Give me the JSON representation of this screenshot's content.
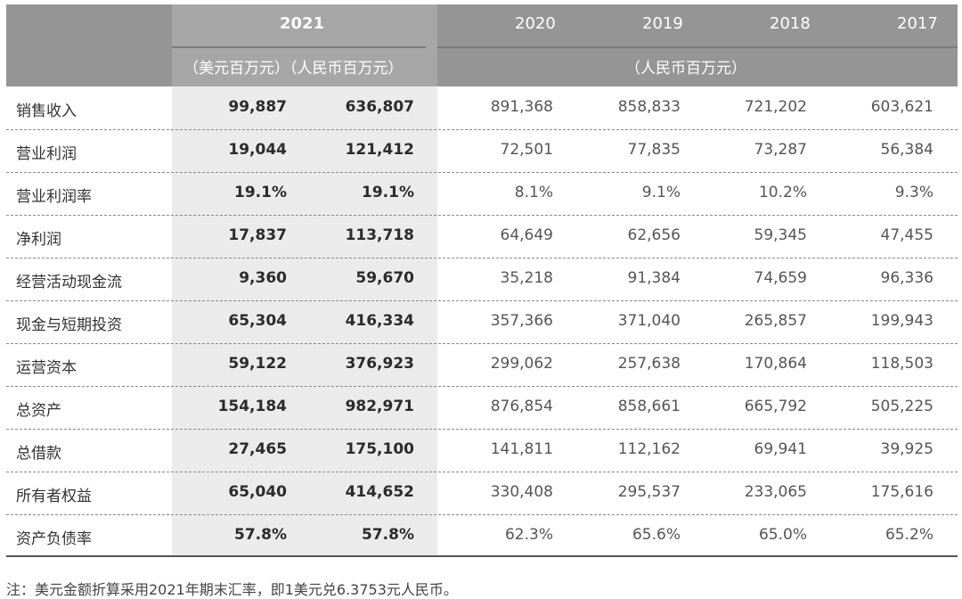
{
  "header": {
    "years": [
      "2021",
      "2020",
      "2019",
      "2018",
      "2017"
    ],
    "unit_2021": "（美元百万元）（人民币百万元）",
    "unit_others": "（人民币百万元）"
  },
  "rows": [
    {
      "label": "销售收入",
      "usd": "99,887",
      "rmb2021": "636,807",
      "y2020": "891,368",
      "y2019": "858,833",
      "y2018": "721,202",
      "y2017": "603,621"
    },
    {
      "label": "营业利润",
      "usd": "19,044",
      "rmb2021": "121,412",
      "y2020": "72,501",
      "y2019": "77,835",
      "y2018": "73,287",
      "y2017": "56,384"
    },
    {
      "label": "营业利润率",
      "usd": "19.1%",
      "rmb2021": "19.1%",
      "y2020": "8.1%",
      "y2019": "9.1%",
      "y2018": "10.2%",
      "y2017": "9.3%"
    },
    {
      "label": "净利润",
      "usd": "17,837",
      "rmb2021": "113,718",
      "y2020": "64,649",
      "y2019": "62,656",
      "y2018": "59,345",
      "y2017": "47,455"
    },
    {
      "label": "经营活动现金流",
      "usd": "9,360",
      "rmb2021": "59,670",
      "y2020": "35,218",
      "y2019": "91,384",
      "y2018": "74,659",
      "y2017": "96,336"
    },
    {
      "label": "现金与短期投资",
      "usd": "65,304",
      "rmb2021": "416,334",
      "y2020": "357,366",
      "y2019": "371,040",
      "y2018": "265,857",
      "y2017": "199,943"
    },
    {
      "label": "运营资本",
      "usd": "59,122",
      "rmb2021": "376,923",
      "y2020": "299,062",
      "y2019": "257,638",
      "y2018": "170,864",
      "y2017": "118,503"
    },
    {
      "label": "总资产",
      "usd": "154,184",
      "rmb2021": "982,971",
      "y2020": "876,854",
      "y2019": "858,661",
      "y2018": "665,792",
      "y2017": "505,225"
    },
    {
      "label": "总借款",
      "usd": "27,465",
      "rmb2021": "175,100",
      "y2020": "141,811",
      "y2019": "112,162",
      "y2018": "69,941",
      "y2017": "39,925"
    },
    {
      "label": "所有者权益",
      "usd": "65,040",
      "rmb2021": "414,652",
      "y2020": "330,408",
      "y2019": "295,537",
      "y2018": "233,065",
      "y2017": "175,616"
    },
    {
      "label": "资产负债率",
      "usd": "57.8%",
      "rmb2021": "57.8%",
      "y2020": "62.3%",
      "y2019": "65.6%",
      "y2018": "65.0%",
      "y2017": "65.2%"
    }
  ],
  "note": "注：美元金额折算采用2021年期末汇率，即1美元兑6.3753元人民币。"
}
